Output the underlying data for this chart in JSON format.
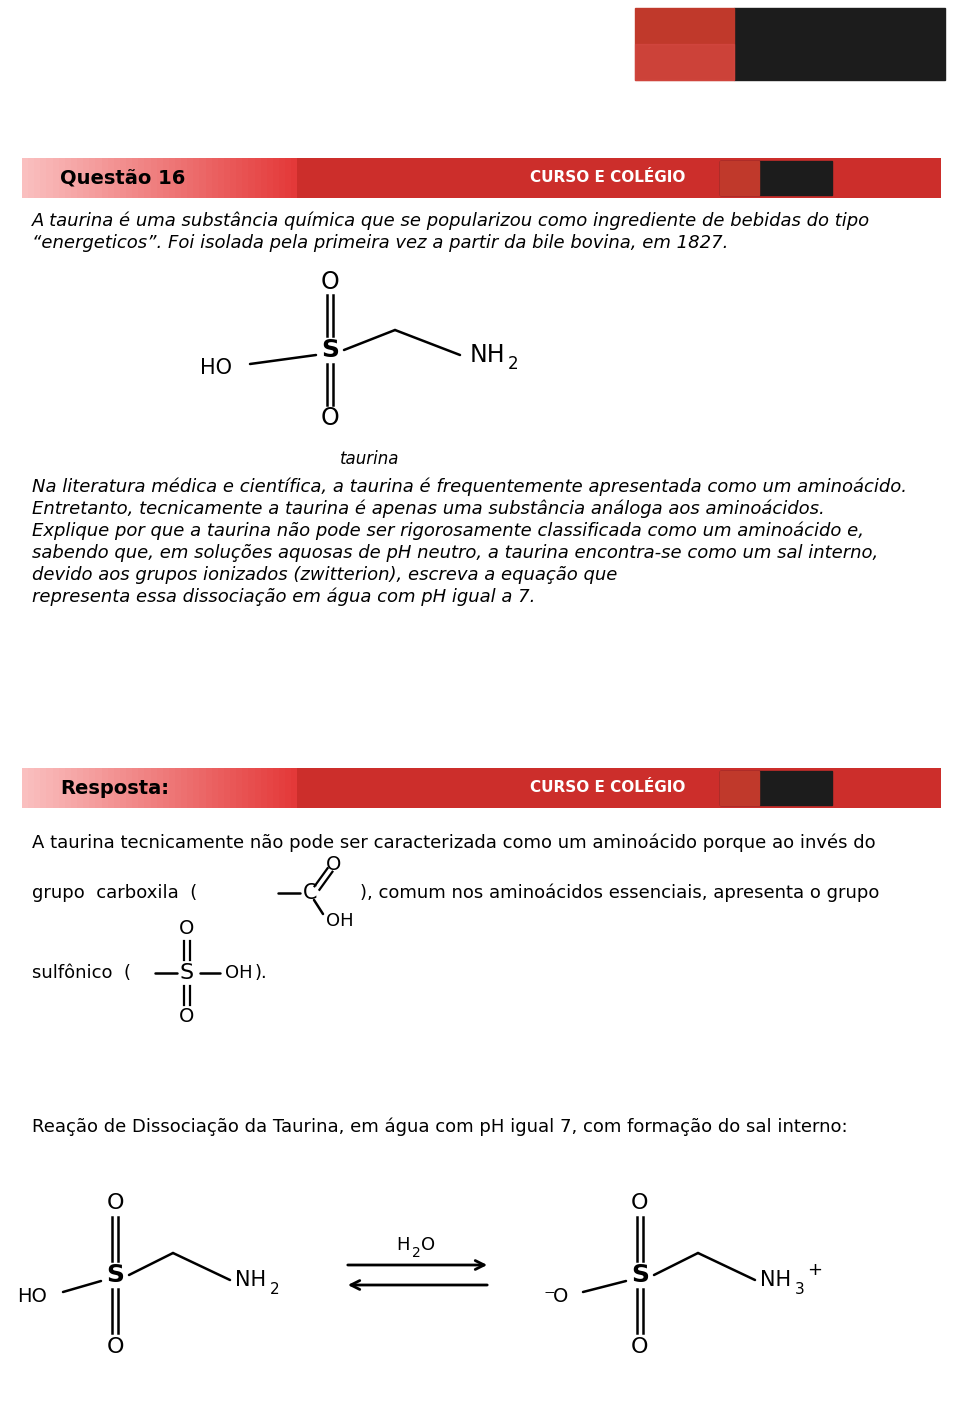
{
  "bg_color": "#ffffff",
  "red_color": "#c8302a",
  "light_pink": "#e8a0a0",
  "header_label": "Questão 16",
  "curso_label": "CURSO E COLÉGIO",
  "resposta_label": "Resposta:",
  "intro_line1": "A taurina é uma substância química que se popularizou como ingrediente de bebidas do tipo",
  "intro_line2": "“energeticos”. Foi isolada pela primeira vez a partir da bile bovina, em 1827.",
  "taurina_label": "taurina",
  "body_lines": [
    "Na literatura médica e científica, a taurina é frequentemente apresentada como um aminoácido.",
    "Entretanto, tecnicamente a taurina é apenas uma substância análoga aos aminoácidos.",
    "Explique por que a taurina não pode ser rigorosamente classificada como um aminoácido e,",
    "sabendo que, em soluções aquosas de pH neutro, a taurina encontra-se como um sal interno,",
    "devido aos grupos ionizados (zwitterion), escreva a equação que",
    "representa essa dissociação em água com pH igual a 7."
  ],
  "answer_line1": "A taurina tecnicamente não pode ser caracterizada como um aminoácido porque ao invés do",
  "carboxila_pre": "grupo  carboxila  (",
  "carboxila_post": "), comum nos aminoácidos essenciais, apresenta o grupo",
  "sulfonico_pre": "sulfônico  (",
  "sulfonico_post": ").",
  "reaction_label": "Reação de Dissociação da Taurina, em água com pH igual 7, com formação do sal interno:"
}
